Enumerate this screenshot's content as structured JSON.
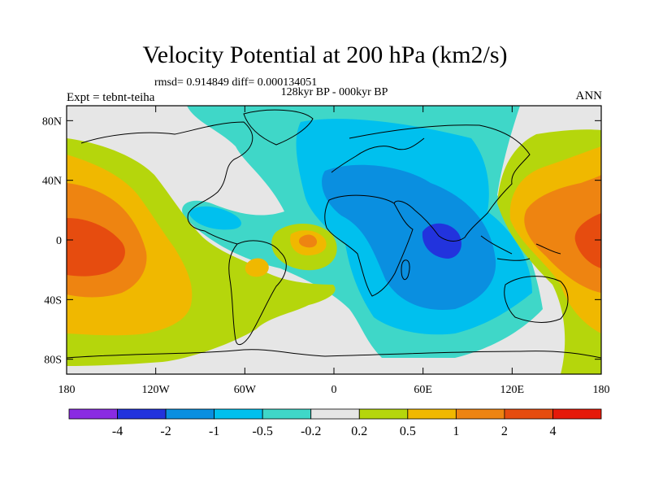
{
  "figure": {
    "title": "Velocity Potential at 200 hPa (km2/s)",
    "stats": "rmsd= 0.914849 diff= 0.000134051",
    "period": "128kyr BP - 000kyr BP",
    "experiment": "Expt = tebnt-teiha",
    "season": "ANN"
  },
  "chart_data": {
    "type": "heatmap",
    "title": "Velocity Potential at 200 hPa (km2/s)",
    "subtitle": "128kyr BP - 000kyr BP",
    "projection": "cylindrical equidistant",
    "xlim": [
      -180,
      180
    ],
    "ylim": [
      -90,
      90
    ],
    "x_ticks": [
      {
        "value": -180,
        "label": "180"
      },
      {
        "value": -120,
        "label": "120W"
      },
      {
        "value": -60,
        "label": "60W"
      },
      {
        "value": 0,
        "label": "0"
      },
      {
        "value": 60,
        "label": "60E"
      },
      {
        "value": 120,
        "label": "120E"
      },
      {
        "value": 180,
        "label": "180"
      }
    ],
    "y_ticks": [
      {
        "value": 80,
        "label": "80N"
      },
      {
        "value": 40,
        "label": "40N"
      },
      {
        "value": 0,
        "label": "0"
      },
      {
        "value": -40,
        "label": "40S"
      },
      {
        "value": -80,
        "label": "80S"
      }
    ],
    "levels": [
      "-4",
      "-2",
      "-1",
      "-0.5",
      "-0.2",
      "0.2",
      "0.5",
      "1",
      "2",
      "4"
    ],
    "colors": [
      "#8a2be2",
      "#2233dd",
      "#0a8fe0",
      "#00c0ee",
      "#3fd7c8",
      "#e6e6e6",
      "#b5d60c",
      "#f0b800",
      "#ee8411",
      "#e64c0f",
      "#e61a0a"
    ],
    "features": [
      {
        "name": "Negative center over Indian Ocean",
        "lon": 72,
        "lat": -2,
        "min_level": "-4"
      },
      {
        "name": "Positive center over western Pacific",
        "lon": 172,
        "lat": 0,
        "max_level": "4"
      },
      {
        "name": "Positive lobe over central-east Pacific",
        "lon": -165,
        "lat": -5,
        "max_level": "4"
      },
      {
        "name": "Positive center over tropical Atlantic",
        "lon": -18,
        "lat": 0,
        "max_level": "2"
      }
    ]
  }
}
